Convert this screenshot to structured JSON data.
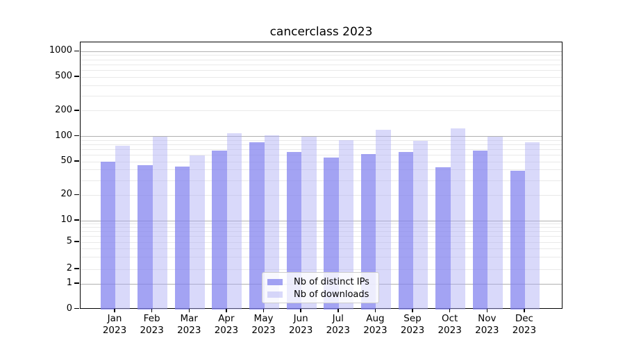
{
  "title": "cancerclass 2023",
  "chart_data": {
    "type": "bar",
    "title": "cancerclass 2023",
    "categories": [
      "Jan",
      "Feb",
      "Mar",
      "Apr",
      "May",
      "Jun",
      "Jul",
      "Aug",
      "Sep",
      "Oct",
      "Nov",
      "Dec"
    ],
    "year": "2023",
    "series": [
      {
        "name": "Nb of distinct IPs",
        "color": "rgba(128,128,238,0.72)",
        "values": [
          50,
          46,
          44,
          68,
          86,
          65,
          56,
          62,
          65,
          43,
          68,
          39
        ]
      },
      {
        "name": "Nb of downloads",
        "color": "rgba(171,171,244,0.45)",
        "values": [
          78,
          100,
          60,
          110,
          104,
          100,
          90,
          121,
          88,
          124,
          100,
          85
        ]
      }
    ],
    "y_axis": {
      "scale": "symlog",
      "tick_values": [
        0,
        1,
        2,
        5,
        10,
        20,
        50,
        100,
        200,
        500,
        1000
      ],
      "tick_labels": [
        "0",
        "1",
        "2",
        "5",
        "10",
        "20",
        "50",
        "100",
        "200",
        "500",
        "1000"
      ]
    },
    "grid": true,
    "legend_position": "lower-center"
  },
  "legend": {
    "items": [
      {
        "label": "Nb of distinct IPs"
      },
      {
        "label": "Nb of downloads"
      }
    ]
  },
  "colors": {
    "bar_distinct_ips": "rgba(128,128,238,0.72)",
    "bar_downloads": "rgba(171,171,244,0.45)",
    "grid_major": "#b0b0b0",
    "grid_minor": "#e9e9e9",
    "spine": "#000000",
    "legend_border": "#cccccc"
  }
}
